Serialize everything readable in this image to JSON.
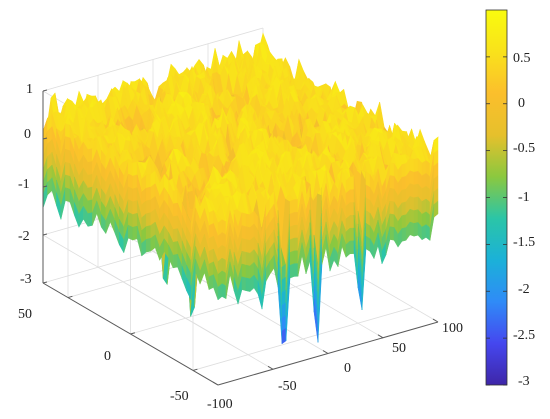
{
  "chart_data": {
    "type": "surface",
    "title": "",
    "xlabel": "",
    "ylabel": "",
    "zlabel": "",
    "x_range": [
      -100,
      100
    ],
    "y_range": [
      -70,
      70
    ],
    "z_range": [
      -3,
      1
    ],
    "x_ticks": [
      -100,
      -50,
      0,
      50,
      100
    ],
    "y_ticks": [
      -50,
      0,
      50
    ],
    "z_ticks": [
      -3,
      -2,
      -1,
      0,
      1
    ],
    "x_tick_labels": [
      "-100",
      "-50",
      "0",
      "50",
      "100"
    ],
    "y_tick_labels": [
      "-50",
      "0",
      "50"
    ],
    "z_tick_labels": [
      "-3",
      "-2",
      "-1",
      "0",
      "1"
    ],
    "grid": true,
    "colormap": "parula",
    "surface_description_values": {
      "plateau_level": 0.5,
      "typical_minimum": -2.5,
      "global_minimum": -3
    },
    "colorbar": {
      "range": [
        -3,
        1
      ],
      "ticks": [
        0.5,
        0,
        -0.5,
        -1,
        -1.5,
        -2,
        -2.5,
        -3
      ],
      "tick_labels": [
        "0.5",
        "0",
        "-0.5",
        "-1",
        "-1.5",
        "-2",
        "-2.5",
        "-3"
      ],
      "location": "right"
    }
  },
  "colors": {
    "parula": [
      "#3e26a8",
      "#4547ef",
      "#2f8bf7",
      "#1bb1d8",
      "#2bc5a7",
      "#8bc83f",
      "#e6c02c",
      "#fbbf2c",
      "#f9e21b",
      "#f9fb0e"
    ],
    "axis": "#5a5a5a",
    "grid": "#dedede"
  }
}
